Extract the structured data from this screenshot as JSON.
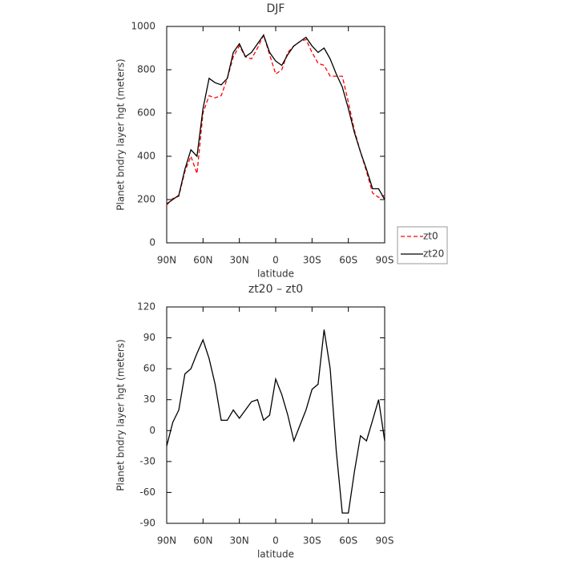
{
  "chart_data": [
    {
      "type": "line",
      "title": "DJF",
      "x_label": "latitude",
      "y_label": "Planet bndry layer hgt (meters)",
      "x": [
        90,
        85,
        80,
        75,
        70,
        65,
        60,
        55,
        50,
        45,
        40,
        35,
        30,
        25,
        20,
        15,
        10,
        5,
        0,
        -5,
        -10,
        -15,
        -20,
        -25,
        -30,
        -35,
        -40,
        -45,
        -50,
        -55,
        -60,
        -65,
        -70,
        -75,
        -80,
        -85,
        -90
      ],
      "xlim": [
        90,
        -90
      ],
      "xticks": [
        {
          "value": 90,
          "label": "90N"
        },
        {
          "value": 60,
          "label": "60N"
        },
        {
          "value": 30,
          "label": "30N"
        },
        0,
        {
          "value": -30,
          "label": "30S"
        },
        {
          "value": -60,
          "label": "60S"
        },
        {
          "value": -90,
          "label": "90S"
        }
      ],
      "ylim": [
        0,
        1000
      ],
      "yticks": [
        0,
        200,
        400,
        600,
        800,
        1000
      ],
      "legend": "right",
      "series": [
        {
          "name": "zt0",
          "color": "#ff0000",
          "dash": true,
          "values": [
            175,
            205,
            215,
            330,
            400,
            320,
            600,
            680,
            670,
            680,
            760,
            860,
            910,
            860,
            850,
            900,
            960,
            870,
            780,
            800,
            880,
            910,
            930,
            940,
            880,
            830,
            820,
            770,
            770,
            770,
            650,
            520,
            420,
            330,
            230,
            210,
            220
          ]
        },
        {
          "name": "zt20",
          "color": "#000000",
          "dash": false,
          "values": [
            180,
            200,
            220,
            340,
            430,
            400,
            620,
            760,
            740,
            730,
            760,
            880,
            920,
            860,
            880,
            920,
            960,
            880,
            840,
            820,
            870,
            910,
            930,
            950,
            910,
            880,
            900,
            850,
            780,
            720,
            620,
            510,
            420,
            340,
            250,
            250,
            200
          ]
        }
      ]
    },
    {
      "type": "line",
      "title": "zt20 – zt0",
      "x_label": "latitude",
      "y_label": "Planet bndry layer hgt (meters)",
      "x": [
        90,
        85,
        80,
        75,
        70,
        65,
        60,
        55,
        50,
        45,
        40,
        35,
        30,
        25,
        20,
        15,
        10,
        5,
        0,
        -5,
        -10,
        -15,
        -20,
        -25,
        -30,
        -35,
        -40,
        -45,
        -50,
        -55,
        -60,
        -65,
        -70,
        -75,
        -80,
        -85,
        -90
      ],
      "xlim": [
        90,
        -90
      ],
      "xticks": [
        {
          "value": 90,
          "label": "90N"
        },
        {
          "value": 60,
          "label": "60N"
        },
        {
          "value": 30,
          "label": "30N"
        },
        0,
        {
          "value": -30,
          "label": "30S"
        },
        {
          "value": -60,
          "label": "60S"
        },
        {
          "value": -90,
          "label": "90S"
        }
      ],
      "ylim": [
        -90,
        120
      ],
      "yticks": [
        -90,
        -60,
        -30,
        0,
        30,
        60,
        90,
        120
      ],
      "series": [
        {
          "color": "#000000",
          "dash": false,
          "values": [
            -15,
            8,
            20,
            55,
            60,
            75,
            88,
            70,
            45,
            10,
            10,
            20,
            12,
            20,
            28,
            30,
            10,
            15,
            50,
            35,
            15,
            -10,
            5,
            20,
            40,
            45,
            98,
            60,
            -20,
            -80,
            -80,
            -40,
            -5,
            -10,
            10,
            30,
            -10
          ]
        }
      ]
    }
  ]
}
